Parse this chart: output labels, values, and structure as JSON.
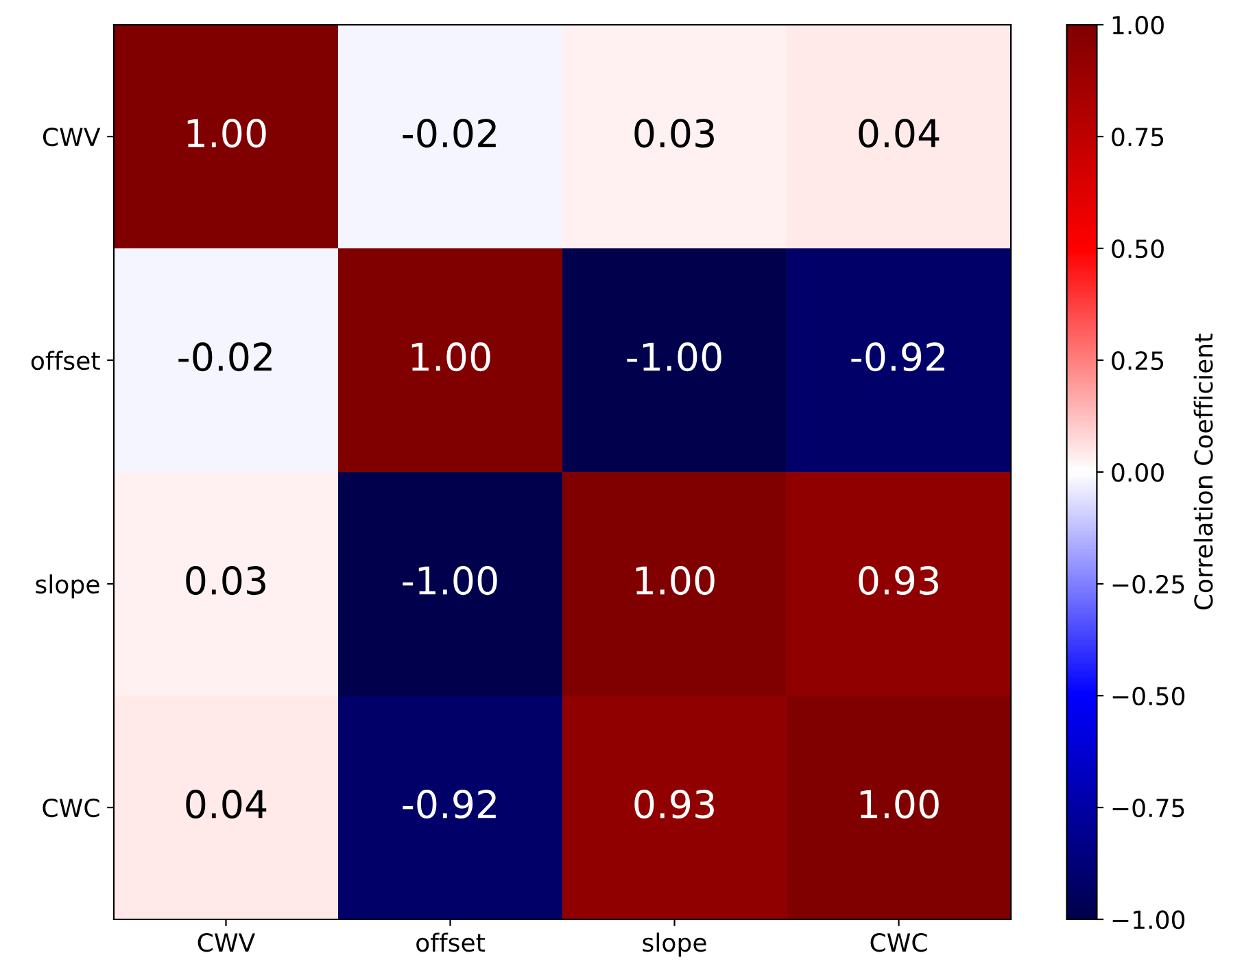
{
  "chart_data": {
    "type": "heatmap",
    "categories": [
      "CWV",
      "offset",
      "slope",
      "CWC"
    ],
    "y_categories": [
      "CWV",
      "offset",
      "slope",
      "CWC"
    ],
    "cells": [
      [
        1.0,
        -0.02,
        0.03,
        0.04
      ],
      [
        -0.02,
        1.0,
        -1.0,
        -0.92
      ],
      [
        0.03,
        -1.0,
        1.0,
        0.93
      ],
      [
        0.04,
        -0.92,
        0.93,
        1.0
      ]
    ],
    "cell_labels": [
      [
        "1.00",
        "-0.02",
        "0.03",
        "0.04"
      ],
      [
        "-0.02",
        "1.00",
        "-1.00",
        "-0.92"
      ],
      [
        "0.03",
        "-1.00",
        "1.00",
        "0.93"
      ],
      [
        "0.04",
        "-0.92",
        "0.93",
        "1.00"
      ]
    ],
    "clim": [
      -1,
      1
    ],
    "cticks": [
      {
        "value": -1,
        "label": "−1.00"
      },
      {
        "value": -0.75,
        "label": "−0.75"
      },
      {
        "value": -0.5,
        "label": "−0.50"
      },
      {
        "value": -0.25,
        "label": "−0.25"
      },
      {
        "value": 0,
        "label": "0.00"
      },
      {
        "value": 0.25,
        "label": "0.25"
      },
      {
        "value": 0.5,
        "label": "0.50"
      },
      {
        "value": 0.75,
        "label": "0.75"
      },
      {
        "value": 1,
        "label": "1.00"
      }
    ],
    "clabel": "Correlation Coefficient"
  }
}
